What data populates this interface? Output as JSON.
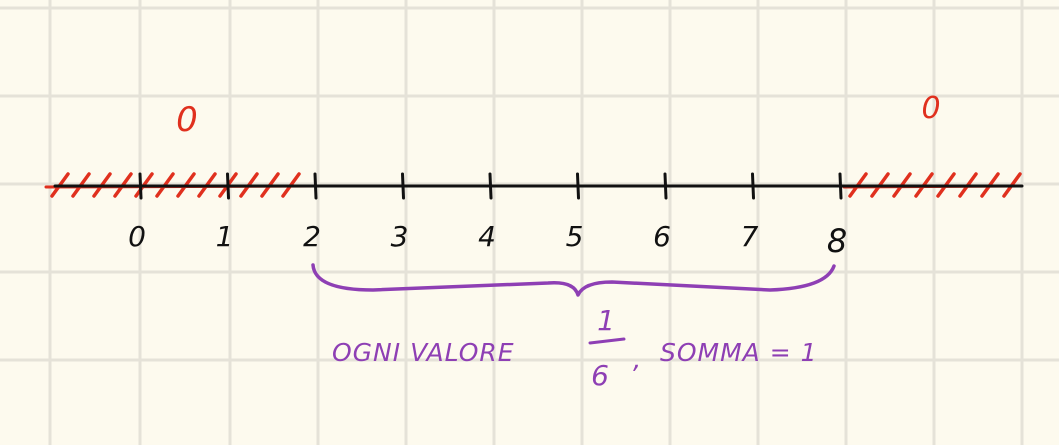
{
  "colors": {
    "paper": "#fdfaee",
    "grid": "#e5e2d8",
    "axis": "#111111",
    "hatch": "#e0301e",
    "brace": "#8e3fb4"
  },
  "number_line": {
    "tick_values": [
      0,
      1,
      2,
      3,
      4,
      5,
      6,
      7,
      8
    ],
    "tick_labels": [
      "0",
      "1",
      "2",
      "3",
      "4",
      "5",
      "6",
      "7",
      "8"
    ],
    "support_start": 2,
    "support_end": 8
  },
  "regions": {
    "left_value": "0",
    "right_value": "0"
  },
  "annotation": {
    "prefix": "OGNI VALORE",
    "fraction_numerator": "1",
    "fraction_denominator": "6",
    "comma": ",",
    "sum_text": "SOMMA = 1"
  }
}
